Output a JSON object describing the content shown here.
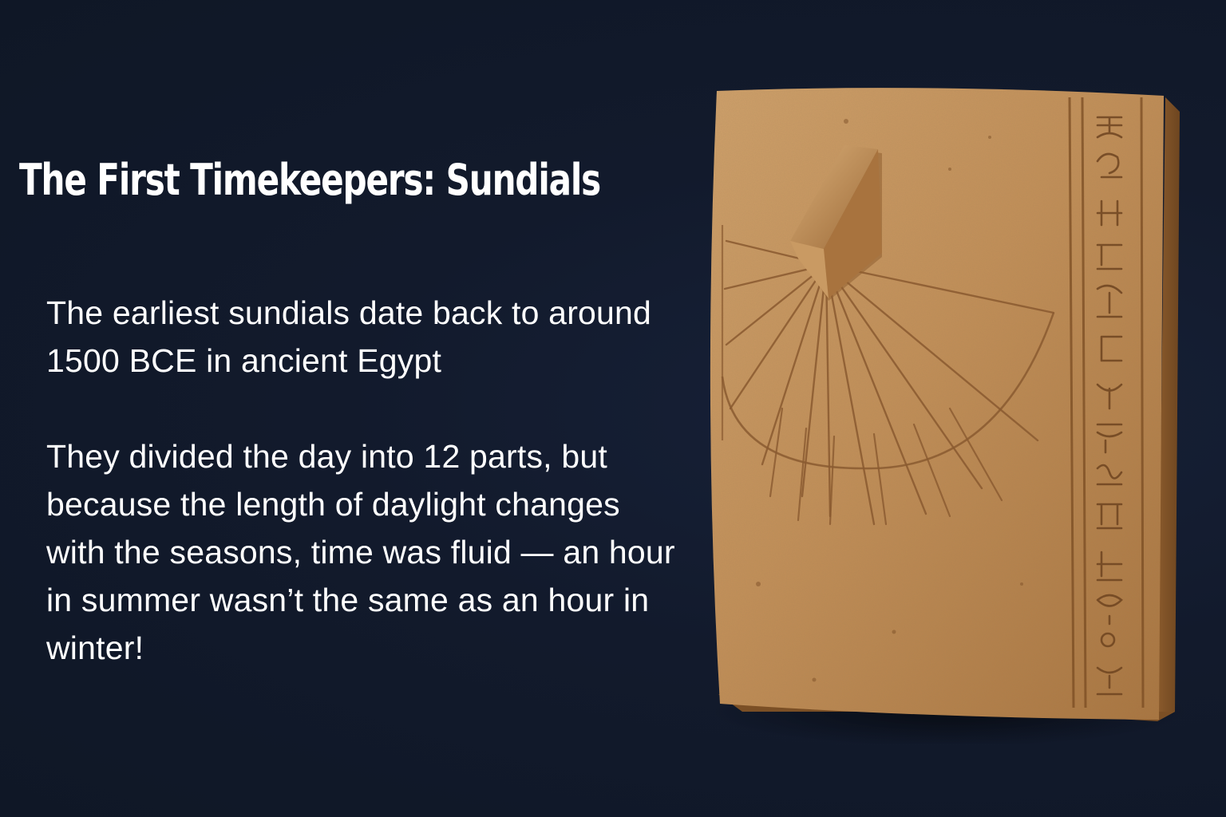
{
  "slide": {
    "title": "The First Timekeepers: Sundials",
    "paragraphs": [
      "The earliest sundials date back to around 1500 BCE in ancient Egypt",
      "They divided the day into 12 parts, but because the length of daylight changes with the seasons, time was fluid — an hour in summer wasn’t the same as an hour in winter!"
    ]
  },
  "colors": {
    "background": "#111a2b",
    "text": "#ffffff",
    "stone": "#c0905a"
  }
}
